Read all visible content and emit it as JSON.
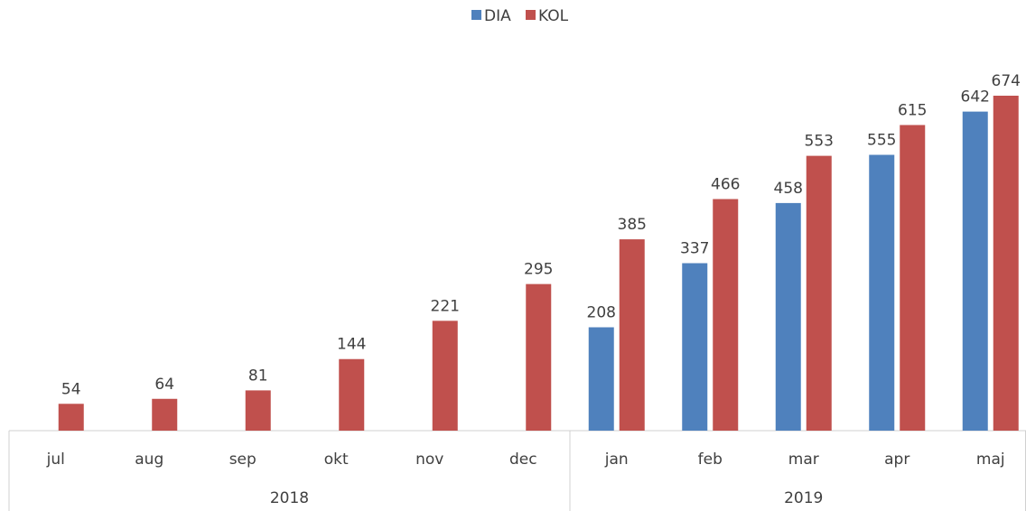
{
  "chart_data": {
    "type": "bar",
    "categories": [
      "jul",
      "aug",
      "sep",
      "okt",
      "nov",
      "dec",
      "jan",
      "feb",
      "mar",
      "apr",
      "maj"
    ],
    "category_groups": [
      "2018",
      "2018",
      "2018",
      "2018",
      "2018",
      "2018",
      "2019",
      "2019",
      "2019",
      "2019",
      "2019"
    ],
    "series": [
      {
        "name": "DIA",
        "color": "#4f81bd",
        "values": [
          null,
          null,
          null,
          null,
          null,
          null,
          208,
          337,
          458,
          555,
          642
        ]
      },
      {
        "name": "KOL",
        "color": "#c0504d",
        "values": [
          54,
          64,
          81,
          144,
          221,
          295,
          385,
          466,
          553,
          615,
          674
        ]
      }
    ],
    "legend": "top"
  }
}
